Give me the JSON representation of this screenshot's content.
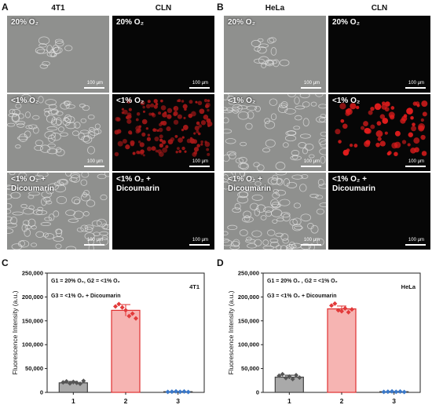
{
  "panels": {
    "A": {
      "label": "A",
      "col1": "4T1",
      "col2": "CLN"
    },
    "B": {
      "label": "B",
      "col1": "HeLa",
      "col2": "CLN"
    },
    "C": {
      "label": "C"
    },
    "D": {
      "label": "D"
    }
  },
  "row_labels": [
    "20% O₂",
    "<1% O₂",
    "<1% O₂ +\nDicoumarin"
  ],
  "scale_bar": "100 μm",
  "colors": {
    "bar_g1": "#a9a9a9",
    "bar_g2": "#f6b4b2",
    "edge_g2": "#e03030",
    "points_g1": "#555555",
    "points_g2": "#e23a3a",
    "points_g3": "#3a78c9"
  },
  "chart_data": [
    {
      "type": "bar",
      "title": "4T1",
      "legend_lines": [
        "G1 = 20% O₂, G2 = <1% O₂",
        "G3 = <1% O₂ + Dicoumarin"
      ],
      "ylabel": "Fluorescence Intensity (a.u.)",
      "categories": [
        "1",
        "2",
        "3"
      ],
      "values": [
        20000,
        172000,
        1500
      ],
      "errors": [
        3000,
        12000,
        500
      ],
      "points": [
        [
          21000,
          23000,
          19000,
          22000,
          20000,
          18000,
          24000
        ],
        [
          180000,
          185000,
          178000,
          172000,
          160000,
          165000,
          155000
        ],
        [
          1000,
          1500,
          2000,
          1200,
          1800,
          800
        ]
      ],
      "ylim": [
        0,
        250000
      ],
      "yticks": [
        "0",
        "50,000",
        "100,000",
        "150,000",
        "200,000",
        "250,000"
      ]
    },
    {
      "type": "bar",
      "title": "HeLa",
      "legend_lines": [
        "G1 = 20% O₂ , G2 = <1% O₂",
        "G3 = <1% O₂ + Dicoumarin"
      ],
      "ylabel": "Fluorescence Intensity (a.u.)",
      "categories": [
        "1",
        "2",
        "3"
      ],
      "values": [
        32000,
        175000,
        1500
      ],
      "errors": [
        4000,
        6000,
        500
      ],
      "points": [
        [
          35000,
          38000,
          30000,
          33000,
          28000,
          36000,
          31000
        ],
        [
          182000,
          186000,
          172000,
          170000,
          176000,
          168000,
          174000
        ],
        [
          1000,
          1500,
          2000,
          1200,
          1800,
          800
        ]
      ],
      "ylim": [
        0,
        250000
      ],
      "yticks": [
        "0",
        "50,000",
        "100,000",
        "150,000",
        "200,000",
        "250,000"
      ]
    }
  ]
}
